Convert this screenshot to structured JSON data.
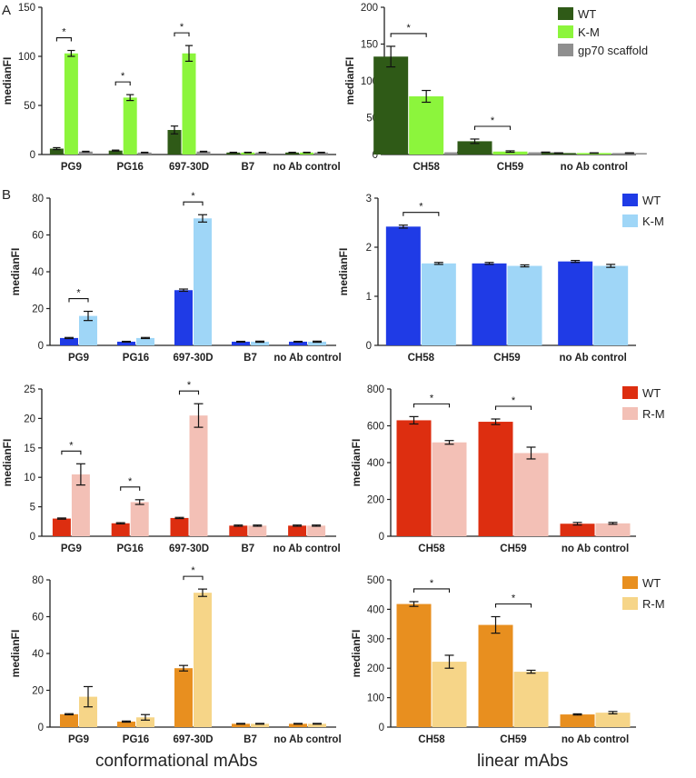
{
  "panel_labels": [
    "A",
    "B"
  ],
  "footer": {
    "left": "conformational mAbs",
    "right": "linear mAbs"
  },
  "chart_data": [
    {
      "id": "A-left",
      "type": "bar",
      "ylabel": "medianFI",
      "ylim": [
        0,
        150
      ],
      "yticks": [
        0,
        50,
        100,
        150
      ],
      "categories": [
        "PG9",
        "PG16",
        "697-30D",
        "B7",
        "no Ab control"
      ],
      "series": [
        {
          "name": "WT",
          "color": "#2f5a17",
          "values": [
            6,
            4,
            25,
            2,
            2
          ],
          "errors": [
            1,
            0.5,
            4,
            0.3,
            0.3
          ]
        },
        {
          "name": "K-M",
          "color": "#8cf53c",
          "values": [
            103,
            58,
            103,
            2,
            2
          ],
          "errors": [
            3,
            3,
            8,
            0.3,
            0.3
          ]
        },
        {
          "name": "gp70 scaffold",
          "color": "#8f8f8f",
          "values": [
            3,
            2,
            3,
            2,
            2
          ],
          "errors": [
            0.3,
            0.3,
            0.3,
            0.3,
            0.3
          ]
        }
      ],
      "significance": [
        {
          "cat": 0,
          "label": "*"
        },
        {
          "cat": 1,
          "label": "*"
        },
        {
          "cat": 2,
          "label": "*"
        }
      ]
    },
    {
      "id": "A-right",
      "type": "bar",
      "ylabel": "medianFI",
      "ylim": [
        0,
        200
      ],
      "yticks": [
        0,
        50,
        100,
        150,
        200
      ],
      "categories": [
        "CH58",
        "CH59",
        "no Ab control"
      ],
      "series": [
        {
          "name": "WT",
          "color": "#2f5a17",
          "values": [
            133,
            18,
            2
          ],
          "errors": [
            14,
            3,
            0.3
          ]
        },
        {
          "name": "K-M",
          "color": "#8cf53c",
          "values": [
            79,
            4,
            2
          ],
          "errors": [
            8,
            1,
            0.3
          ]
        },
        {
          "name": "gp70 scaffold",
          "color": "#8f8f8f",
          "values": [
            3,
            3,
            2
          ],
          "errors": [
            0.3,
            0.3,
            0.3
          ]
        }
      ],
      "significance": [
        {
          "cat": 0,
          "label": "*"
        },
        {
          "cat": 1,
          "label": "*"
        }
      ],
      "legend": [
        "WT",
        "K-M",
        "gp70 scaffold"
      ]
    },
    {
      "id": "B1-left",
      "type": "bar",
      "ylabel": "medianFI",
      "ylim": [
        0,
        80
      ],
      "yticks": [
        0,
        20,
        40,
        60,
        80
      ],
      "categories": [
        "PG9",
        "PG16",
        "697-30D",
        "B7",
        "no Ab control"
      ],
      "series": [
        {
          "name": "WT",
          "color": "#1f3be6",
          "values": [
            4,
            2,
            30,
            2,
            2
          ],
          "errors": [
            0.3,
            0.2,
            0.6,
            0.2,
            0.2
          ]
        },
        {
          "name": "K-M",
          "color": "#9fd6f7",
          "values": [
            16,
            4,
            69,
            2,
            2
          ],
          "errors": [
            2.5,
            0.3,
            2,
            0.3,
            0.3
          ]
        }
      ],
      "significance": [
        {
          "cat": 0,
          "label": "*"
        },
        {
          "cat": 2,
          "label": "*"
        }
      ]
    },
    {
      "id": "B1-right",
      "type": "bar",
      "ylabel": "medianFI",
      "ylim": [
        0,
        3
      ],
      "yticks": [
        0,
        1,
        2,
        3
      ],
      "categories": [
        "CH58",
        "CH59",
        "no Ab control"
      ],
      "series": [
        {
          "name": "WT",
          "color": "#1f3be6",
          "values": [
            2.42,
            1.67,
            1.71
          ],
          "errors": [
            0.03,
            0.02,
            0.02
          ]
        },
        {
          "name": "K-M",
          "color": "#9fd6f7",
          "values": [
            1.67,
            1.62,
            1.62
          ],
          "errors": [
            0.02,
            0.02,
            0.03
          ]
        }
      ],
      "significance": [
        {
          "cat": 0,
          "label": "*"
        }
      ],
      "legend": [
        "WT",
        "K-M"
      ]
    },
    {
      "id": "B2-left",
      "type": "bar",
      "ylabel": "medianFI",
      "ylim": [
        0,
        25
      ],
      "yticks": [
        0,
        5,
        10,
        15,
        20,
        25
      ],
      "categories": [
        "PG9",
        "PG16",
        "697-30D",
        "B7",
        "no Ab control"
      ],
      "series": [
        {
          "name": "WT",
          "color": "#dd2e10",
          "values": [
            3,
            2.2,
            3.1,
            1.8,
            1.8
          ],
          "errors": [
            0.1,
            0.1,
            0.1,
            0.1,
            0.1
          ]
        },
        {
          "name": "R-M",
          "color": "#f3c0b6",
          "values": [
            10.5,
            5.8,
            20.5,
            1.8,
            1.8
          ],
          "errors": [
            1.8,
            0.4,
            2,
            0.1,
            0.1
          ]
        }
      ],
      "significance": [
        {
          "cat": 0,
          "label": "*"
        },
        {
          "cat": 1,
          "label": "*"
        },
        {
          "cat": 2,
          "label": "*"
        }
      ]
    },
    {
      "id": "B2-right",
      "type": "bar",
      "ylabel": "medianFI",
      "ylim": [
        0,
        800
      ],
      "yticks": [
        0,
        200,
        400,
        600,
        800
      ],
      "categories": [
        "CH58",
        "CH59",
        "no Ab control"
      ],
      "series": [
        {
          "name": "WT",
          "color": "#dd2e10",
          "values": [
            630,
            622,
            68
          ],
          "errors": [
            20,
            15,
            7
          ]
        },
        {
          "name": "R-M",
          "color": "#f3c0b6",
          "values": [
            510,
            452,
            70
          ],
          "errors": [
            10,
            32,
            5
          ]
        }
      ],
      "significance": [
        {
          "cat": 0,
          "label": "*"
        },
        {
          "cat": 1,
          "label": "*"
        }
      ],
      "legend": [
        "WT",
        "R-M"
      ]
    },
    {
      "id": "B3-left",
      "type": "bar",
      "ylabel": "medianFI",
      "ylim": [
        0,
        80
      ],
      "yticks": [
        0,
        20,
        40,
        60,
        80
      ],
      "categories": [
        "PG9",
        "PG16",
        "697-30D",
        "B7",
        "no Ab control"
      ],
      "series": [
        {
          "name": "WT",
          "color": "#e88f1f",
          "values": [
            7,
            3,
            32,
            1.8,
            1.8
          ],
          "errors": [
            0.3,
            0.3,
            1.5,
            0.2,
            0.2
          ]
        },
        {
          "name": "R-M",
          "color": "#f6d588",
          "values": [
            16.5,
            5.3,
            73,
            1.8,
            1.8
          ],
          "errors": [
            5.5,
            1.5,
            2,
            0.2,
            0.2
          ]
        }
      ],
      "significance": [
        {
          "cat": 2,
          "label": "*"
        }
      ]
    },
    {
      "id": "B3-right",
      "type": "bar",
      "ylabel": "medianFI",
      "ylim": [
        0,
        500
      ],
      "yticks": [
        0,
        100,
        200,
        300,
        400,
        500
      ],
      "categories": [
        "CH58",
        "CH59",
        "no Ab control"
      ],
      "series": [
        {
          "name": "WT",
          "color": "#e88f1f",
          "values": [
            418,
            347,
            43
          ],
          "errors": [
            8,
            28,
            2
          ]
        },
        {
          "name": "R-M",
          "color": "#f6d588",
          "values": [
            222,
            188,
            49
          ],
          "errors": [
            22,
            5,
            4
          ]
        }
      ],
      "significance": [
        {
          "cat": 0,
          "label": "*"
        },
        {
          "cat": 1,
          "label": "*"
        }
      ],
      "legend": [
        "WT",
        "R-M"
      ]
    }
  ]
}
